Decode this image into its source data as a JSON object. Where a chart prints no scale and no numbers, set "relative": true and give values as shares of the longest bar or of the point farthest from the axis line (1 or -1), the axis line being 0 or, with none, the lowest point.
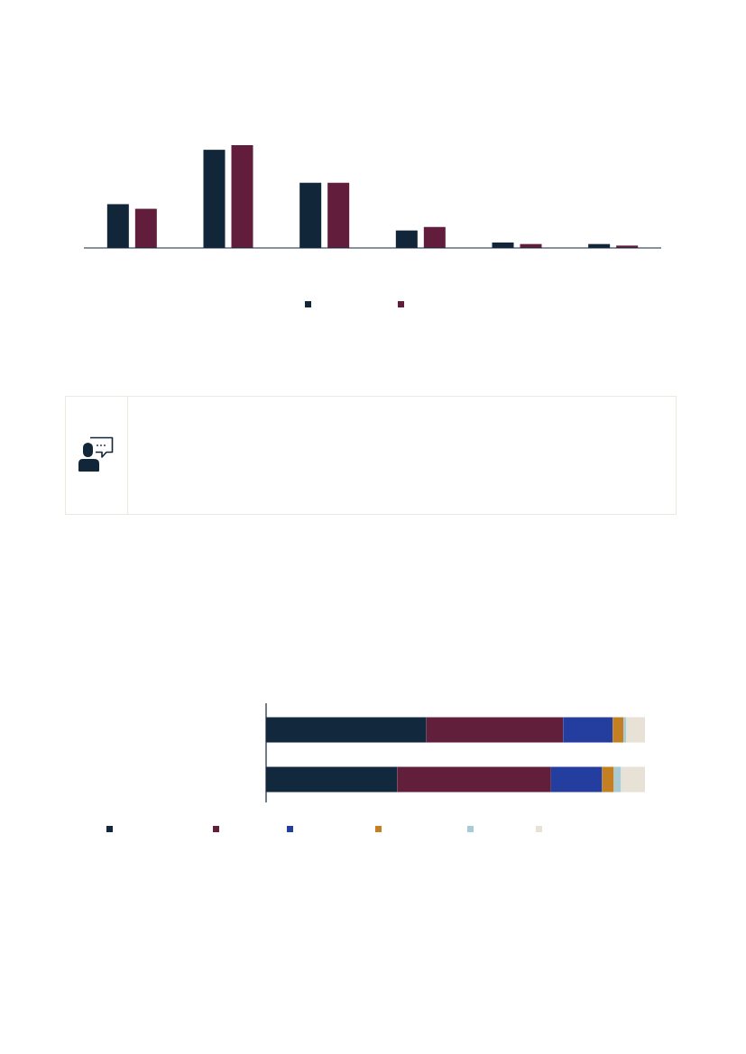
{
  "chart_data": [
    {
      "type": "bar",
      "relative": true,
      "categories": [
        null,
        null,
        null,
        null,
        null,
        null
      ],
      "series": [
        {
          "color": "#12263a",
          "values": [
            0.426,
            0.955,
            0.634,
            0.17,
            0.053,
            0.038
          ]
        },
        {
          "color": "#621d3c",
          "values": [
            0.381,
            1,
            0.634,
            0.204,
            0.038,
            0.023
          ]
        }
      ]
    },
    {
      "type": "bar",
      "orientation": "horizontal",
      "stacked": true,
      "relative": true,
      "categories": [
        null,
        null
      ],
      "series": [
        {
          "color": "#12283c",
          "values": [
            0.423,
            0.346
          ]
        },
        {
          "color": "#621f3c",
          "values": [
            0.361,
            0.406
          ]
        },
        {
          "color": "#233e9e",
          "values": [
            0.131,
            0.135
          ]
        },
        {
          "color": "#c47f22",
          "values": [
            0.028,
            0.031
          ]
        },
        {
          "color": "#a9cbd6",
          "values": [
            0.008,
            0.019
          ]
        },
        {
          "color": "#e8e1d6",
          "values": [
            0.049,
            0.063
          ]
        }
      ]
    }
  ]
}
